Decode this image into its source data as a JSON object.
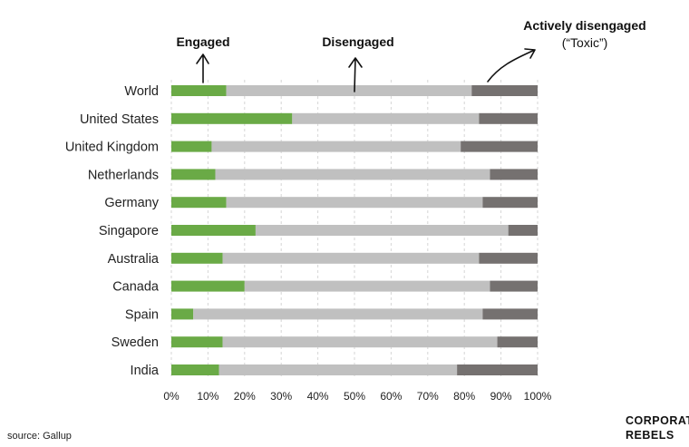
{
  "chart_data": {
    "type": "bar",
    "orientation": "horizontal",
    "stacked": true,
    "categories": [
      "World",
      "United States",
      "United Kingdom",
      "Netherlands",
      "Germany",
      "Singapore",
      "Australia",
      "Canada",
      "Spain",
      "Sweden",
      "India"
    ],
    "series": [
      {
        "name": "Engaged",
        "color": "#6aaa46",
        "values": [
          15,
          33,
          11,
          12,
          15,
          23,
          14,
          20,
          6,
          14,
          13
        ]
      },
      {
        "name": "Disengaged",
        "color": "#c0c0c0",
        "values": [
          67,
          51,
          68,
          75,
          70,
          69,
          70,
          67,
          79,
          75,
          65
        ]
      },
      {
        "name": "Actively disengaged",
        "color": "#757170",
        "values": [
          18,
          16,
          21,
          13,
          15,
          8,
          16,
          13,
          15,
          11,
          22
        ]
      }
    ],
    "xlim": [
      0,
      100
    ],
    "x_ticks": [
      "0%",
      "10%",
      "20%",
      "30%",
      "40%",
      "50%",
      "60%",
      "70%",
      "80%",
      "90%",
      "100%"
    ],
    "grid": "vertical dashed",
    "legend": "annotated arrows above bars",
    "annotations": {
      "engaged_label": "Engaged",
      "disengaged_label": "Disengaged",
      "active_label": "Actively disengaged",
      "active_sublabel": "(“Toxic”)"
    }
  },
  "footer": {
    "source": "source: Gallup",
    "brand_line1": "CORPORATE",
    "brand_line2": "REBELS"
  }
}
